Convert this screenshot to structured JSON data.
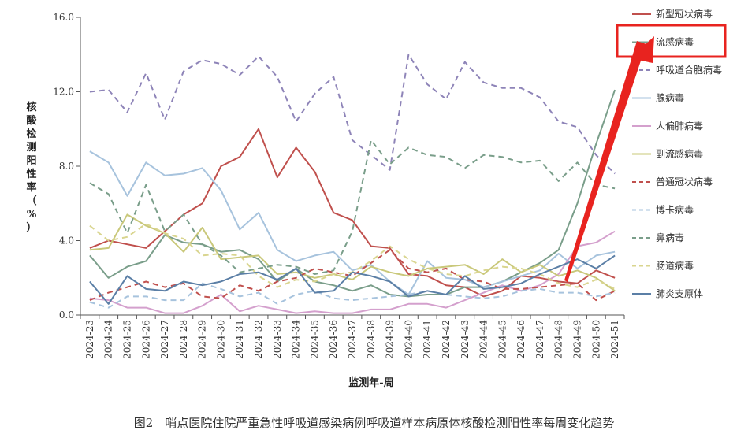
{
  "caption": "图2　哨点医院住院严重急性呼吸道感染病例呼吸道样本病原体核酸检测阳性率每周变化趋势",
  "chart_data": {
    "type": "line",
    "title": "",
    "xlabel": "监测年-周",
    "ylabel": "核酸检测阳性率（%）",
    "ylim": [
      0,
      16
    ],
    "yticks": [
      0,
      4,
      8,
      12,
      16
    ],
    "ytick_labels": [
      "0.0",
      "4.0",
      "8.0",
      "12.0",
      "16.0"
    ],
    "grid": false,
    "legend_position": "right",
    "highlighted_series": "流感病毒",
    "categories": [
      "2024-23",
      "2024-24",
      "2024-25",
      "2024-26",
      "2024-27",
      "2024-28",
      "2024-29",
      "2024-30",
      "2024-31",
      "2024-32",
      "2024-33",
      "2024-34",
      "2024-35",
      "2024-36",
      "2024-37",
      "2024-38",
      "2024-39",
      "2024-40",
      "2024-41",
      "2024-42",
      "2024-43",
      "2024-44",
      "2024-45",
      "2024-46",
      "2024-47",
      "2024-48",
      "2024-49",
      "2024-50",
      "2024-51"
    ],
    "series": [
      {
        "name": "新型冠状病毒",
        "color": "#c0504d",
        "dash": "solid",
        "values": [
          3.6,
          4.0,
          3.8,
          3.6,
          4.5,
          5.4,
          6.0,
          8.0,
          8.5,
          10.0,
          7.4,
          9.0,
          7.7,
          5.5,
          5.1,
          3.7,
          3.6,
          2.2,
          2.1,
          1.6,
          1.5,
          1.0,
          1.3,
          2.1,
          2.0,
          1.8,
          1.7,
          2.4,
          2.0
        ]
      },
      {
        "name": "流感病毒",
        "color": "#7a9e8a",
        "dash": "solid",
        "values": [
          3.2,
          2.0,
          2.6,
          2.9,
          4.3,
          3.9,
          3.8,
          3.4,
          3.5,
          3.0,
          1.8,
          2.5,
          1.8,
          1.6,
          1.3,
          1.6,
          1.1,
          1.0,
          1.1,
          1.1,
          1.5,
          1.5,
          1.8,
          2.3,
          2.8,
          3.5,
          6.0,
          9.2,
          12.1
        ]
      },
      {
        "name": "呼吸道合胞病毒",
        "color": "#8e84b8",
        "dash": "dashed",
        "values": [
          12.0,
          12.1,
          10.9,
          13.0,
          10.5,
          13.1,
          13.7,
          13.5,
          12.9,
          13.9,
          12.8,
          10.4,
          11.9,
          12.8,
          9.4,
          8.6,
          7.8,
          14.0,
          12.4,
          11.6,
          13.6,
          12.5,
          12.2,
          12.2,
          11.7,
          10.4,
          10.1,
          8.6,
          7.6
        ]
      },
      {
        "name": "腺病毒",
        "color": "#a7c3dd",
        "dash": "solid",
        "values": [
          8.8,
          8.2,
          6.4,
          8.2,
          7.5,
          7.6,
          7.9,
          6.7,
          4.6,
          5.5,
          3.5,
          2.9,
          3.2,
          3.4,
          2.4,
          2.7,
          1.8,
          1.1,
          2.9,
          2.0,
          1.9,
          1.5,
          1.8,
          2.1,
          2.4,
          3.3,
          2.5,
          3.2,
          3.4
        ]
      },
      {
        "name": "人偏肺病毒",
        "color": "#d4a0cd",
        "dash": "solid",
        "values": [
          0.9,
          0.8,
          0.4,
          0.4,
          0.1,
          0.1,
          0.5,
          1.1,
          0.2,
          0.5,
          0.3,
          0.1,
          0.2,
          0.1,
          0.1,
          0.3,
          0.3,
          0.6,
          0.6,
          0.4,
          0.8,
          1.2,
          1.6,
          1.3,
          1.6,
          2.2,
          3.7,
          3.9,
          4.5
        ]
      },
      {
        "name": "副流感病毒",
        "color": "#c9c87a",
        "dash": "solid",
        "values": [
          3.5,
          3.6,
          5.4,
          4.8,
          4.4,
          3.4,
          4.7,
          3.0,
          3.1,
          3.2,
          2.2,
          2.3,
          2.0,
          2.2,
          1.9,
          2.6,
          2.3,
          2.1,
          2.5,
          2.6,
          2.7,
          2.2,
          3.0,
          2.3,
          2.7,
          2.1,
          2.4,
          2.0,
          1.3
        ]
      },
      {
        "name": "普通冠状病毒",
        "color": "#c0504d",
        "dash": "dashed",
        "values": [
          0.8,
          1.2,
          1.5,
          1.8,
          1.5,
          1.7,
          1.0,
          0.9,
          1.6,
          1.3,
          1.8,
          2.0,
          2.5,
          2.3,
          2.1,
          2.8,
          3.5,
          2.5,
          2.3,
          2.5,
          1.9,
          1.8,
          1.4,
          1.4,
          1.5,
          1.6,
          1.7,
          0.8,
          1.3
        ]
      },
      {
        "name": "博卡病毒",
        "color": "#a7c3dd",
        "dash": "dashed",
        "values": [
          0.7,
          0.4,
          1.0,
          1.0,
          0.8,
          0.8,
          1.7,
          1.4,
          1.0,
          1.2,
          0.6,
          1.1,
          1.3,
          0.9,
          0.8,
          0.9,
          1.0,
          1.1,
          1.3,
          1.1,
          1.0,
          0.9,
          1.0,
          1.3,
          1.4,
          1.2,
          1.2,
          1.0,
          1.2
        ]
      },
      {
        "name": "鼻病毒",
        "color": "#7a9e8a",
        "dash": "dashed",
        "values": [
          7.1,
          6.5,
          4.4,
          7.0,
          4.5,
          5.4,
          3.8,
          3.2,
          2.3,
          2.5,
          2.7,
          2.6,
          2.2,
          2.4,
          4.5,
          9.4,
          8.1,
          9.0,
          8.6,
          8.5,
          7.9,
          8.6,
          8.5,
          8.2,
          8.3,
          7.2,
          8.2,
          7.0,
          6.8
        ]
      },
      {
        "name": "肠道病毒",
        "color": "#d9d58f",
        "dash": "dashed",
        "values": [
          4.8,
          4.0,
          4.2,
          4.9,
          4.4,
          4.1,
          3.2,
          3.3,
          3.2,
          2.1,
          1.5,
          1.9,
          1.8,
          2.2,
          2.3,
          2.9,
          3.7,
          3.0,
          2.5,
          2.2,
          2.1,
          2.4,
          2.6,
          2.5,
          2.2,
          1.7,
          1.5,
          1.9,
          1.4
        ]
      },
      {
        "name": "肺炎支原体",
        "color": "#5b7fa6",
        "dash": "solid",
        "values": [
          1.8,
          0.6,
          2.1,
          1.4,
          1.3,
          1.8,
          1.6,
          1.8,
          2.2,
          2.3,
          1.9,
          2.5,
          1.2,
          1.3,
          2.3,
          2.1,
          1.8,
          1.0,
          1.3,
          1.1,
          2.1,
          1.4,
          1.5,
          1.7,
          2.2,
          2.6,
          3.0,
          2.5,
          3.2
        ]
      }
    ]
  }
}
